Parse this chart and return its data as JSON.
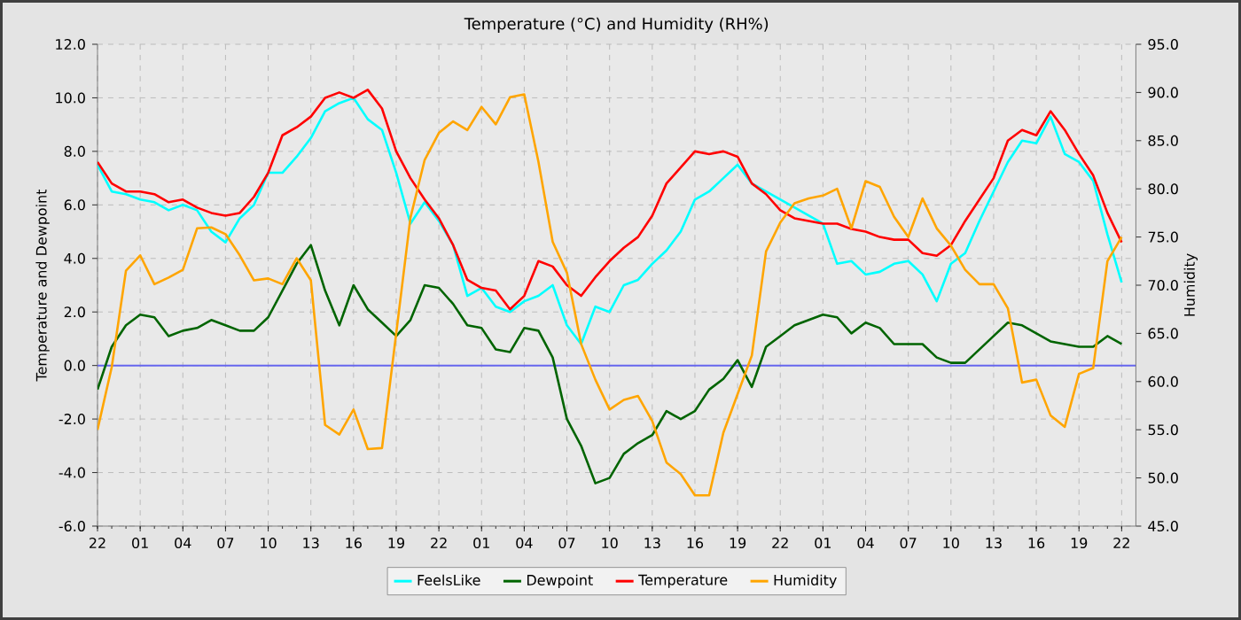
{
  "chart_data": {
    "type": "line",
    "title": "Temperature (°C) and Humidity (RH%)",
    "ylabel": "Temperature and Dewpoint",
    "y2label": "Humidity",
    "categories": [
      "22",
      null,
      null,
      "01",
      null,
      null,
      "04",
      null,
      null,
      "07",
      null,
      null,
      "10",
      null,
      null,
      "13",
      null,
      null,
      "16",
      null,
      null,
      "19",
      null,
      null,
      "22",
      null,
      null,
      "01",
      null,
      null,
      "04",
      null,
      null,
      "07",
      null,
      null,
      "10",
      null,
      null,
      "13",
      null,
      null,
      "16",
      null,
      null,
      "19",
      null,
      null,
      "22",
      null,
      null,
      "01",
      null,
      null,
      "04",
      null,
      null,
      "07",
      null,
      null,
      "10",
      null,
      null,
      "13",
      null,
      null,
      "16",
      null,
      null,
      "19",
      null,
      null,
      "22"
    ],
    "ylim": [
      -6,
      12
    ],
    "y2lim": [
      45,
      95
    ],
    "yticks": [
      {
        "value": -6,
        "label": "-6.0"
      },
      {
        "value": -4,
        "label": "-4.0"
      },
      {
        "value": -2,
        "label": "-2.0"
      },
      {
        "value": 0,
        "label": "0.0"
      },
      {
        "value": 2,
        "label": "2.0"
      },
      {
        "value": 4,
        "label": "4.0"
      },
      {
        "value": 6,
        "label": "6.0"
      },
      {
        "value": 8,
        "label": "8.0"
      },
      {
        "value": 10,
        "label": "10.0"
      },
      {
        "value": 12,
        "label": "12.0"
      }
    ],
    "y2ticks": [
      {
        "value": 45,
        "label": "45.0"
      },
      {
        "value": 50,
        "label": "50.0"
      },
      {
        "value": 55,
        "label": "55.0"
      },
      {
        "value": 60,
        "label": "60.0"
      },
      {
        "value": 65,
        "label": "65.0"
      },
      {
        "value": 70,
        "label": "70.0"
      },
      {
        "value": 75,
        "label": "75.0"
      },
      {
        "value": 80,
        "label": "80.0"
      },
      {
        "value": 85,
        "label": "85.0"
      },
      {
        "value": 90,
        "label": "90.0"
      },
      {
        "value": 95,
        "label": "95.0"
      }
    ],
    "grid": true,
    "legend": "bottom",
    "marker": "none",
    "line_style": "solid",
    "ref_lines": [
      {
        "axis": "y",
        "value": 0,
        "color": "#6666ee"
      }
    ],
    "series": [
      {
        "name": "FeelsLike",
        "color": "#00ffff",
        "values": [
          7.5,
          6.5,
          6.4,
          6.2,
          6.1,
          5.8,
          6.0,
          5.8,
          5.0,
          4.6,
          5.5,
          6.0,
          7.2,
          7.2,
          7.8,
          8.5,
          9.5,
          9.8,
          10.0,
          9.2,
          8.8,
          7.2,
          5.3,
          6.1,
          5.4,
          4.5,
          2.6,
          2.9,
          2.2,
          2.0,
          2.4,
          2.6,
          3.0,
          1.5,
          0.8,
          2.2,
          2.0,
          3.0,
          3.2,
          3.8,
          4.3,
          5.0,
          6.2,
          6.5,
          7.0,
          7.5,
          6.8,
          null,
          null,
          null,
          null,
          5.3,
          3.8,
          3.9,
          3.4,
          3.5,
          3.8,
          3.9,
          3.4,
          2.4,
          3.8,
          4.2,
          5.4,
          6.5,
          7.6,
          8.4,
          8.3,
          9.3,
          7.9,
          7.6,
          6.9,
          4.9,
          3.1
        ]
      },
      {
        "name": "Dewpoint",
        "color": "#006400",
        "values": [
          -0.9,
          0.7,
          1.5,
          1.9,
          1.8,
          1.1,
          1.3,
          1.4,
          1.7,
          1.5,
          1.3,
          1.3,
          1.8,
          2.8,
          3.8,
          4.5,
          2.8,
          1.5,
          3.0,
          2.1,
          1.6,
          1.1,
          1.7,
          3.0,
          2.9,
          2.3,
          1.5,
          1.4,
          0.6,
          0.5,
          1.4,
          1.3,
          0.3,
          -2.0,
          -3.0,
          -4.4,
          -4.2,
          -3.3,
          -2.9,
          -2.6,
          -1.7,
          -2.0,
          -1.7,
          -0.9,
          -0.5,
          0.2,
          -0.8,
          0.7,
          1.1,
          1.5,
          1.7,
          1.9,
          1.8,
          1.2,
          1.6,
          1.4,
          0.8,
          0.8,
          0.8,
          0.3,
          0.1,
          0.1,
          0.6,
          1.1,
          1.6,
          1.5,
          1.2,
          0.9,
          0.8,
          0.7,
          0.7,
          1.1,
          0.8
        ]
      },
      {
        "name": "Temperature",
        "color": "#ff0000",
        "values": [
          7.6,
          6.8,
          6.5,
          6.5,
          6.4,
          6.1,
          6.2,
          5.9,
          5.7,
          5.6,
          5.7,
          6.3,
          7.2,
          8.6,
          8.9,
          9.3,
          10.0,
          10.2,
          10.0,
          10.3,
          9.6,
          8.0,
          7.0,
          6.2,
          5.5,
          4.5,
          3.2,
          2.9,
          2.8,
          2.1,
          2.6,
          3.9,
          3.7,
          3.0,
          2.6,
          3.3,
          3.9,
          4.4,
          4.8,
          5.6,
          6.8,
          7.4,
          8.0,
          7.9,
          8.0,
          7.8,
          6.8,
          6.4,
          5.8,
          5.5,
          5.4,
          5.3,
          5.3,
          5.1,
          5.0,
          4.8,
          4.7,
          4.7,
          4.2,
          4.1,
          4.5,
          5.4,
          6.2,
          7.0,
          8.4,
          8.8,
          8.6,
          9.5,
          8.8,
          7.9,
          7.1,
          5.7,
          4.6
        ]
      },
      {
        "name": "Humidity",
        "color": "#ffa500",
        "axis": "y2",
        "values": [
          55.0,
          61.5,
          71.5,
          73.1,
          70.1,
          70.8,
          71.6,
          75.9,
          76.0,
          75.3,
          73.1,
          70.5,
          70.7,
          70.1,
          72.8,
          70.5,
          55.5,
          54.5,
          57.1,
          53.0,
          53.1,
          65.0,
          77.0,
          83.0,
          85.8,
          87.0,
          86.1,
          88.5,
          86.7,
          89.5,
          89.8,
          82.8,
          74.5,
          71.3,
          63.9,
          60.2,
          57.1,
          58.1,
          58.5,
          55.9,
          51.6,
          50.4,
          48.2,
          48.2,
          54.7,
          58.7,
          62.7,
          73.5,
          76.5,
          78.5,
          79.0,
          79.3,
          80.0,
          75.9,
          80.8,
          80.2,
          77.1,
          75.0,
          79.0,
          75.9,
          74.1,
          71.6,
          70.1,
          70.1,
          67.6,
          59.9,
          60.2,
          56.5,
          55.3,
          60.8,
          61.4,
          72.5,
          75.0
        ]
      }
    ]
  }
}
